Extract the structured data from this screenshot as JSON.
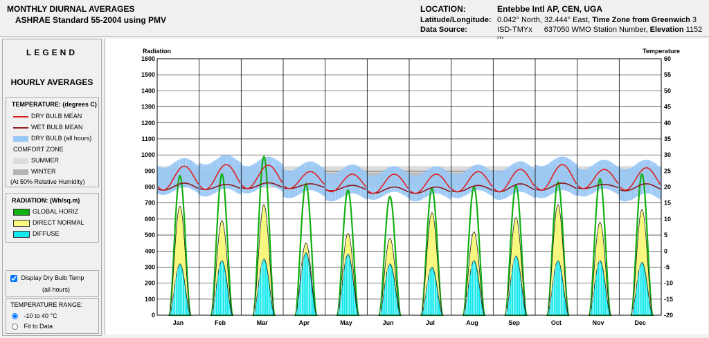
{
  "header": {
    "title": "MONTHLY DIURNAL AVERAGES",
    "subtitle": "ASHRAE Standard 55-2004 using PMV",
    "location_label": "LOCATION:",
    "location_value": "Entebbe Intl AP, CEN, UGA",
    "latlon_label": "Latitude/Longitude:",
    "latlon_value": "0.042° North, 32.444° East,",
    "tz_label": "Time Zone from Greenwich",
    "tz_value": "3",
    "source_label": "Data Source:",
    "source_value": "ISD-TMYx",
    "station_value": "637050 WMO Station Number,",
    "elev_label": "Elevation",
    "elev_value": "1152 m"
  },
  "legend": {
    "title": "LEGEND",
    "subtitle": "HOURLY AVERAGES",
    "temp_header": "TEMPERATURE: (degrees C)",
    "dry_bulb_mean": "DRY BULB MEAN",
    "wet_bulb_mean": "WET BULB MEAN",
    "dry_bulb_all": "DRY BULB (all hours)",
    "comfort_zone": "COMFORT ZONE",
    "summer": "SUMMER",
    "winter": "WINTER",
    "humidity_note": "(At 50% Relative Humidity)",
    "rad_header": "RADIATION: (Wh/sq.m)",
    "global_horiz": "GLOBAL HORIZ",
    "direct_normal": "DIRECT NORMAL",
    "diffuse": "DIFFUSE",
    "display_dry_bulb": "Display Dry Bulb Temp",
    "all_hours": "(all hours)",
    "temp_range": "TEMPERATURE RANGE:",
    "range_option_1": "-10 to 40 °C",
    "range_option_2": "Fit to Data"
  },
  "colors": {
    "dry_bulb_mean": "#e02020",
    "wet_bulb_mean": "#8b1a1a",
    "dry_bulb_all": "#9ac8f5",
    "summer": "#dcdcdc",
    "winter": "#b4b4b4",
    "global_horiz": "#10b010",
    "direct_normal": "#f8f880",
    "diffuse": "#10e8ec"
  },
  "chart_data": {
    "type": "area",
    "left_axis_label": "Radiation",
    "right_axis_label": "Temperature",
    "left_ylim": [
      0,
      1600
    ],
    "left_ticks": [
      0,
      100,
      200,
      300,
      400,
      500,
      600,
      700,
      800,
      900,
      1000,
      1100,
      1200,
      1300,
      1400,
      1500,
      1600
    ],
    "right_ylim": [
      -20,
      60
    ],
    "right_ticks": [
      -20,
      -15,
      -10,
      -5,
      0,
      5,
      10,
      15,
      20,
      25,
      30,
      35,
      40,
      45,
      50,
      55,
      60
    ],
    "categories": [
      "Jan",
      "Feb",
      "Mar",
      "Apr",
      "May",
      "Jun",
      "Jul",
      "Aug",
      "Sep",
      "Oct",
      "Nov",
      "Dec"
    ],
    "comfort_summer": [
      23.5,
      26.5
    ],
    "comfort_winter": [
      20.5,
      24.5
    ],
    "global_peak": [
      870,
      880,
      990,
      820,
      780,
      740,
      790,
      800,
      810,
      830,
      850,
      880
    ],
    "direct_peak": [
      680,
      590,
      690,
      450,
      510,
      480,
      640,
      520,
      610,
      690,
      580,
      660
    ],
    "diffuse_peak": [
      320,
      340,
      350,
      390,
      380,
      320,
      300,
      340,
      370,
      340,
      340,
      330
    ],
    "dry_bulb_mean_max": [
      26.5,
      27.0,
      26.8,
      24.8,
      24.0,
      24.0,
      24.0,
      24.8,
      25.5,
      27.0,
      25.5,
      26.0
    ],
    "dry_bulb_mean_min": [
      19.0,
      19.2,
      19.5,
      19.5,
      18.5,
      18.0,
      18.0,
      18.5,
      18.5,
      19.0,
      19.5,
      19.0
    ],
    "wet_bulb_mean_max": [
      21.2,
      20.8,
      21.3,
      21.0,
      20.5,
      20.0,
      20.0,
      20.5,
      21.0,
      21.2,
      20.8,
      21.0
    ],
    "wet_bulb_mean_min": [
      19.0,
      19.2,
      19.5,
      19.5,
      18.8,
      18.0,
      18.0,
      18.5,
      18.5,
      19.0,
      19.5,
      18.8
    ],
    "dry_bulb_all_max": [
      29.0,
      30.0,
      29.5,
      28.0,
      27.0,
      26.5,
      26.5,
      27.0,
      28.0,
      29.5,
      28.5,
      28.5
    ],
    "dry_bulb_all_min": [
      17.5,
      17.0,
      18.0,
      16.5,
      15.5,
      16.0,
      15.5,
      16.5,
      16.0,
      16.5,
      17.0,
      15.5
    ]
  }
}
